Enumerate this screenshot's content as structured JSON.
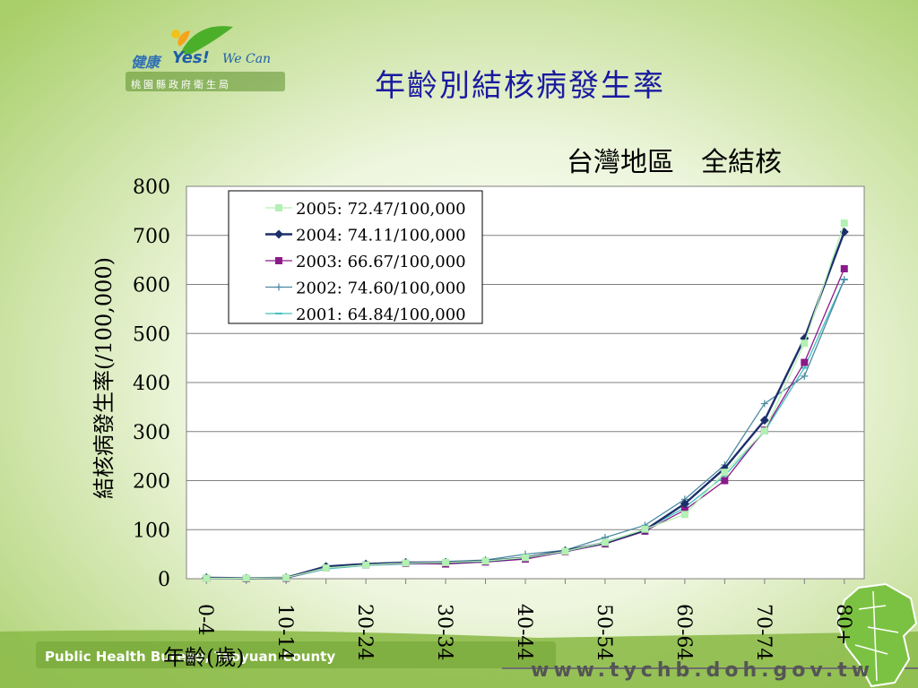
{
  "header": {
    "logo_brand": "健康",
    "logo_yes": "Yes!",
    "logo_wecan": "We Can",
    "logo_sub": "桃園縣政府衛生局",
    "title": "年齡別結核病發生率",
    "subtitle": "台灣地區　全結核"
  },
  "footer": {
    "left_text": "Public Health Bureau, Taoyuan County",
    "url": "www.tychb.doh.gov.tw"
  },
  "colors": {
    "background_green": "#a9cf6a",
    "footer_green": "#8dbb4a",
    "title_blue": "#1a1aa0"
  },
  "chart_data": {
    "type": "line",
    "ylabel": "結核病發生率(/100,000)",
    "xlabel": "年齡(歲)",
    "ylim": [
      0,
      800
    ],
    "yticks": [
      "0",
      "100",
      "200",
      "300",
      "400",
      "500",
      "600",
      "700",
      "800"
    ],
    "grid": true,
    "legend_position": "top-left",
    "categories": [
      "0-4",
      "5-9",
      "10-14",
      "15-19",
      "20-24",
      "25-29",
      "30-34",
      "35-39",
      "40-44",
      "45-49",
      "50-54",
      "55-59",
      "60-64",
      "65-69",
      "70-74",
      "75-79",
      "80+"
    ],
    "category_labels": [
      "0-4",
      "",
      "10-14",
      "",
      "20-24",
      "",
      "30-34",
      "",
      "40-44",
      "",
      "50-54",
      "",
      "60-64",
      "",
      "70-74",
      "",
      "80+"
    ],
    "series": [
      {
        "name": "2005: 72.47/100,000",
        "color": "#b3f0b3",
        "marker": "square",
        "values": [
          1,
          1,
          2,
          22,
          28,
          32,
          33,
          36,
          43,
          56,
          74,
          101,
          131,
          217,
          301,
          480,
          725
        ]
      },
      {
        "name": "2004: 74.11/100,000",
        "color": "#1c2f6b",
        "marker": "diamond",
        "values": [
          2,
          1,
          2,
          25,
          30,
          33,
          33,
          36,
          43,
          57,
          73,
          99,
          153,
          225,
          323,
          490,
          707
        ]
      },
      {
        "name": "2003: 66.67/100,000",
        "color": "#8b1a8b",
        "marker": "square",
        "values": [
          1,
          0,
          1,
          22,
          28,
          31,
          30,
          34,
          40,
          55,
          71,
          97,
          140,
          200,
          303,
          441,
          632
        ]
      },
      {
        "name": "2002: 74.60/100,000",
        "color": "#4a8aa0",
        "marker": "plus",
        "values": [
          2,
          1,
          2,
          23,
          29,
          33,
          35,
          38,
          50,
          58,
          84,
          109,
          162,
          232,
          357,
          413,
          610
        ]
      },
      {
        "name": "2001: 64.84/100,000",
        "color": "#40c0c0",
        "marker": "dash",
        "values": [
          1,
          0,
          1,
          20,
          27,
          30,
          31,
          34,
          43,
          54,
          75,
          100,
          145,
          210,
          300,
          430,
          610
        ]
      }
    ]
  }
}
